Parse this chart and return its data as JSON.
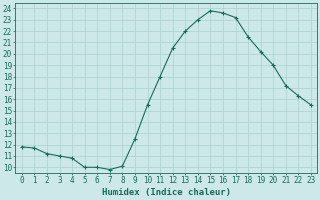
{
  "x": [
    0,
    1,
    2,
    3,
    4,
    5,
    6,
    7,
    8,
    9,
    10,
    11,
    12,
    13,
    14,
    15,
    16,
    17,
    18,
    19,
    20,
    21,
    22,
    23
  ],
  "y": [
    11.8,
    11.7,
    11.2,
    11.0,
    10.8,
    10.0,
    10.0,
    9.8,
    10.1,
    12.5,
    15.5,
    18.0,
    20.5,
    22.0,
    23.0,
    23.8,
    23.6,
    23.2,
    21.5,
    20.2,
    19.0,
    17.2,
    16.3,
    15.5
  ],
  "line_color": "#1a6b5a",
  "marker": "+",
  "marker_size": 3.5,
  "marker_linewidth": 0.8,
  "linewidth": 0.8,
  "background_color": "#cce8e8",
  "grid_color": "#aad0d0",
  "xlabel": "Humidex (Indice chaleur)",
  "xlim": [
    -0.5,
    23.5
  ],
  "ylim": [
    9.5,
    24.5
  ],
  "yticks": [
    10,
    11,
    12,
    13,
    14,
    15,
    16,
    17,
    18,
    19,
    20,
    21,
    22,
    23,
    24
  ],
  "xticks": [
    0,
    1,
    2,
    3,
    4,
    5,
    6,
    7,
    8,
    9,
    10,
    11,
    12,
    13,
    14,
    15,
    16,
    17,
    18,
    19,
    20,
    21,
    22,
    23
  ],
  "tick_color": "#1a6b5a",
  "xlabel_fontsize": 6.5,
  "tick_fontsize": 5.5
}
